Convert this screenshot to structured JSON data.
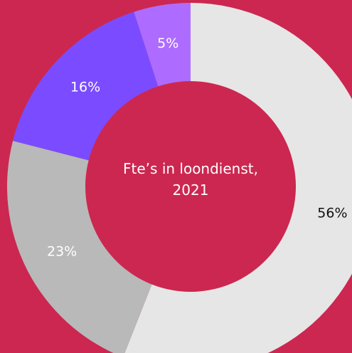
{
  "chart_data": {
    "type": "donut",
    "title": "Fte’s in loondienst, 2021",
    "values": [
      56,
      23,
      16,
      5
    ],
    "value_labels": [
      "56%",
      "23%",
      "16%",
      "5%"
    ],
    "colors": [
      "#e6e6e6",
      "#b9b9b9",
      "#7b4cff",
      "#ad6cff"
    ],
    "label_colors": [
      "#111111",
      "#ffffff",
      "#ffffff",
      "#ffffff"
    ],
    "background": "#cc2750"
  }
}
